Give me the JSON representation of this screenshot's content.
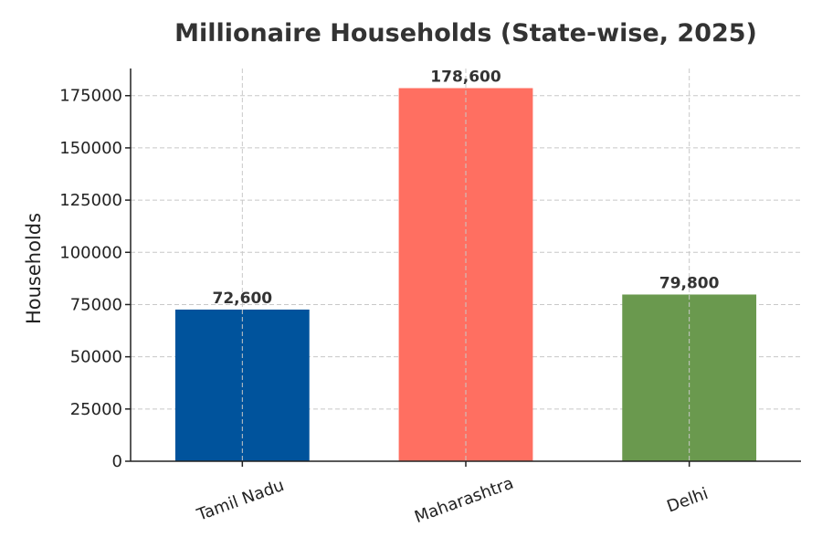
{
  "chart_data": {
    "type": "bar",
    "title": "Millionaire Households (State-wise, 2025)",
    "xlabel": "",
    "ylabel": "Households",
    "categories": [
      "Tamil Nadu",
      "Maharashtra",
      "Delhi"
    ],
    "values": [
      72600,
      178600,
      79800
    ],
    "value_labels": [
      "72,600",
      "178,600",
      "79,800"
    ],
    "colors": [
      "#00539c",
      "#ff6f61",
      "#6a994e"
    ],
    "ylim": [
      0,
      188000
    ],
    "yticks": [
      0,
      25000,
      50000,
      75000,
      100000,
      125000,
      150000,
      175000
    ],
    "ytick_labels": [
      "0",
      "25000",
      "50000",
      "75000",
      "100000",
      "125000",
      "150000",
      "175000"
    ],
    "grid": true,
    "xtick_rotation_deg": -20
  }
}
